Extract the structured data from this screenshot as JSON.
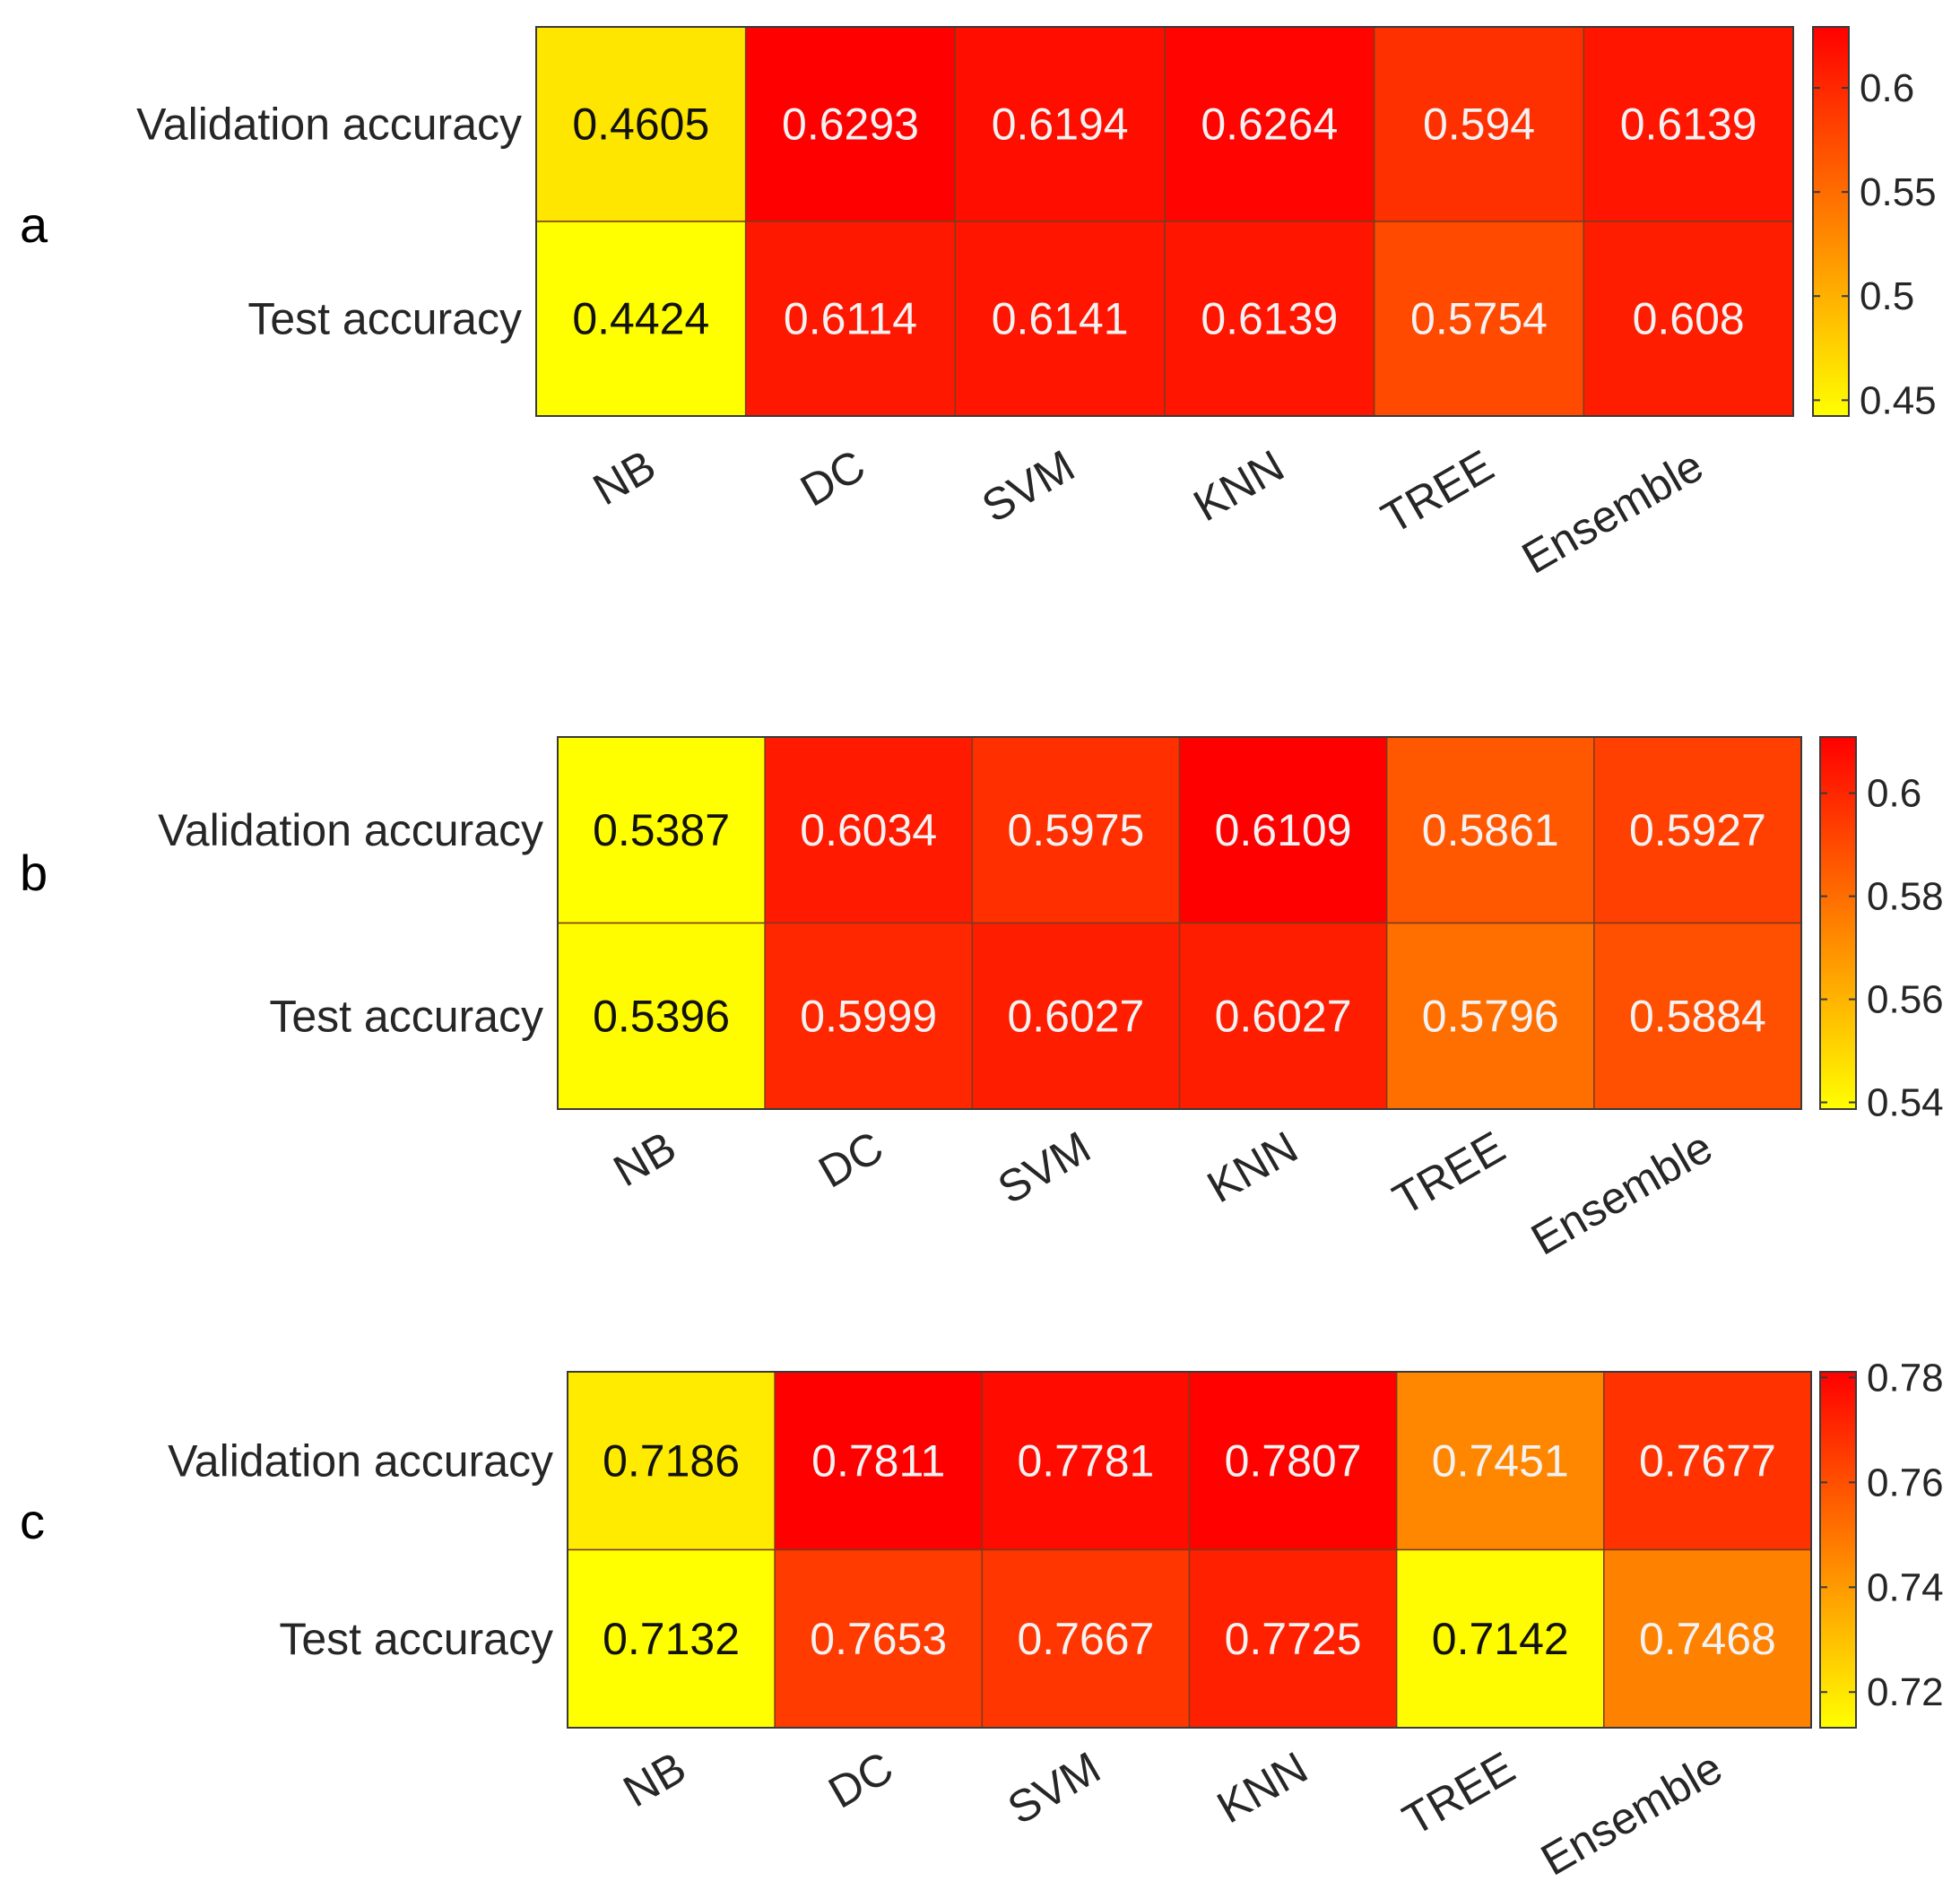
{
  "chart_data": [
    {
      "type": "heatmap",
      "panel": "a",
      "rows": [
        "Validation accuracy",
        "Test accuracy"
      ],
      "columns": [
        "NB",
        "DC",
        "SVM",
        "KNN",
        "TREE",
        "Ensemble"
      ],
      "values": [
        [
          0.4605,
          0.6293,
          0.6194,
          0.6264,
          0.594,
          0.6139
        ],
        [
          0.4424,
          0.6114,
          0.6141,
          0.6139,
          0.5754,
          0.608
        ]
      ],
      "labels": [
        [
          "0.4605",
          "0.6293",
          "0.6194",
          "0.6264",
          "0.594",
          "0.6139"
        ],
        [
          "0.4424",
          "0.6114",
          "0.6141",
          "0.6139",
          "0.5754",
          "0.608"
        ]
      ],
      "colorbar": {
        "range": [
          0.4424,
          0.6293
        ],
        "ticks": [
          0.45,
          0.5,
          0.55,
          0.6
        ],
        "tick_labels": [
          "0.45",
          "0.5",
          "0.55",
          "0.6"
        ],
        "colormap": "autumn (yellow to red)"
      }
    },
    {
      "type": "heatmap",
      "panel": "b",
      "rows": [
        "Validation accuracy",
        "Test accuracy"
      ],
      "columns": [
        "NB",
        "DC",
        "SVM",
        "KNN",
        "TREE",
        "Ensemble"
      ],
      "values": [
        [
          0.5387,
          0.6034,
          0.5975,
          0.6109,
          0.5861,
          0.5927
        ],
        [
          0.5396,
          0.5999,
          0.6027,
          0.6027,
          0.5796,
          0.5884
        ]
      ],
      "labels": [
        [
          "0.5387",
          "0.6034",
          "0.5975",
          "0.6109",
          "0.5861",
          "0.5927"
        ],
        [
          "0.5396",
          "0.5999",
          "0.6027",
          "0.6027",
          "0.5796",
          "0.5884"
        ]
      ],
      "colorbar": {
        "range": [
          0.5387,
          0.6109
        ],
        "ticks": [
          0.54,
          0.56,
          0.58,
          0.6
        ],
        "tick_labels": [
          "0.54",
          "0.56",
          "0.58",
          "0.6"
        ],
        "colormap": "autumn (yellow to red)"
      }
    },
    {
      "type": "heatmap",
      "panel": "c",
      "rows": [
        "Validation accuracy",
        "Test accuracy"
      ],
      "columns": [
        "NB",
        "DC",
        "SVM",
        "KNN",
        "TREE",
        "Ensemble"
      ],
      "values": [
        [
          0.7186,
          0.7811,
          0.7781,
          0.7807,
          0.7451,
          0.7677
        ],
        [
          0.7132,
          0.7653,
          0.7667,
          0.7725,
          0.7142,
          0.7468
        ]
      ],
      "labels": [
        [
          "0.7186",
          "0.7811",
          "0.7781",
          "0.7807",
          "0.7451",
          "0.7677"
        ],
        [
          "0.7132",
          "0.7653",
          "0.7667",
          "0.7725",
          "0.7142",
          "0.7468"
        ]
      ],
      "colorbar": {
        "range": [
          0.7132,
          0.7811
        ],
        "ticks": [
          0.72,
          0.74,
          0.76,
          0.78
        ],
        "tick_labels": [
          "0.72",
          "0.74",
          "0.76",
          "0.78"
        ],
        "colormap": "autumn (yellow to red)"
      }
    }
  ]
}
